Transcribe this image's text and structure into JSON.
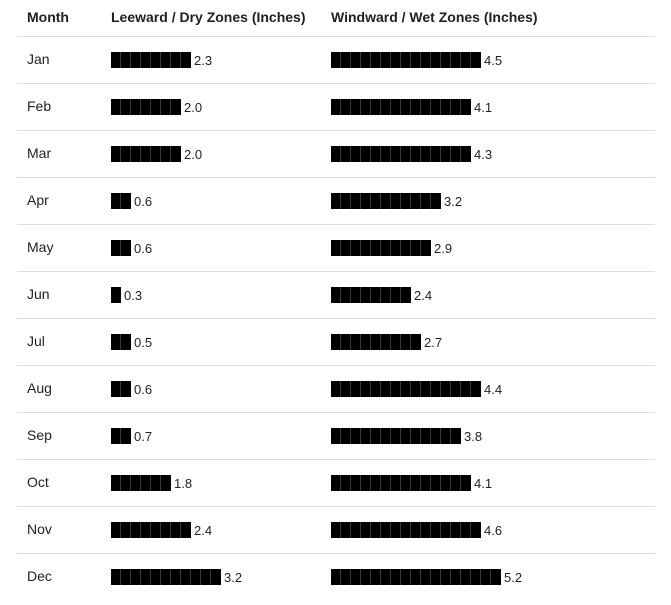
{
  "table": {
    "headers": {
      "month": "Month",
      "dry": "Leeward / Dry Zones (Inches)",
      "wet": "Windward / Wet Zones (Inches)"
    }
  },
  "chart_data": {
    "type": "bar",
    "categories": [
      "Jan",
      "Feb",
      "Mar",
      "Apr",
      "May",
      "Jun",
      "Jul",
      "Aug",
      "Sep",
      "Oct",
      "Nov",
      "Dec"
    ],
    "series": [
      {
        "name": "Leeward / Dry Zones (Inches)",
        "values": [
          2.3,
          2.0,
          2.0,
          0.6,
          0.6,
          0.3,
          0.5,
          0.6,
          0.7,
          1.8,
          2.4,
          3.2
        ]
      },
      {
        "name": "Windward / Wet Zones (Inches)",
        "values": [
          4.5,
          4.1,
          4.3,
          3.2,
          2.9,
          2.4,
          2.7,
          4.4,
          3.8,
          4.1,
          4.6,
          5.2
        ]
      }
    ],
    "value_labels": {
      "dry": [
        "2.3",
        "2.0",
        "2.0",
        "0.6",
        "0.6",
        "0.3",
        "0.5",
        "0.6",
        "0.7",
        "1.8",
        "2.4",
        "3.2"
      ],
      "wet": [
        "4.5",
        "4.1",
        "4.3",
        "3.2",
        "2.9",
        "2.4",
        "2.7",
        "4.4",
        "3.8",
        "4.1",
        "4.6",
        "5.2"
      ]
    },
    "bar_color": "#000000",
    "grid": false
  }
}
